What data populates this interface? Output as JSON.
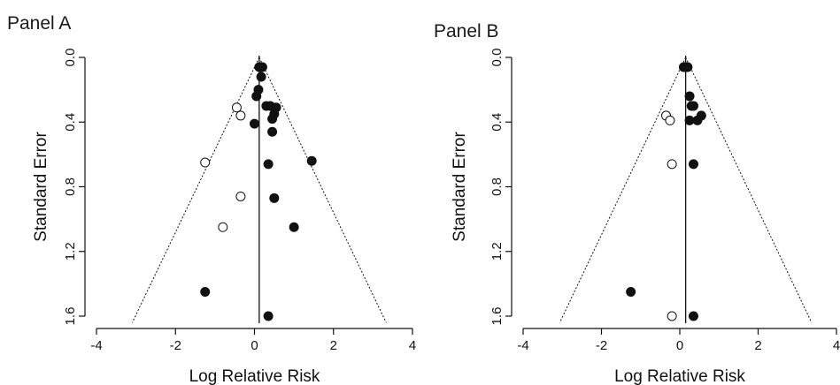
{
  "chart_data": [
    {
      "type": "scatter",
      "panel_title": "Panel A",
      "xlabel": "Log Relative Risk",
      "ylabel": "Standard Error",
      "xlim": [
        -4,
        4
      ],
      "ylim": [
        0,
        1.6
      ],
      "y_inverted": true,
      "xticks": [
        "-4",
        "-2",
        "0",
        "2",
        "4"
      ],
      "yticks": [
        "0.0",
        "0.4",
        "0.8",
        "1.2",
        "1.6"
      ],
      "center_line_x": 0.12,
      "funnel_dotted": true,
      "grid": false,
      "series": [
        {
          "marker": "filled",
          "points": [
            {
              "x": 0.15,
              "y": 0.06
            },
            {
              "x": 0.2,
              "y": 0.06
            },
            {
              "x": 0.12,
              "y": 0.06
            },
            {
              "x": 0.17,
              "y": 0.12
            },
            {
              "x": 0.1,
              "y": 0.2
            },
            {
              "x": 0.05,
              "y": 0.24
            },
            {
              "x": 0.3,
              "y": 0.3
            },
            {
              "x": 0.4,
              "y": 0.3
            },
            {
              "x": 0.55,
              "y": 0.31
            },
            {
              "x": 0.5,
              "y": 0.35
            },
            {
              "x": 0.45,
              "y": 0.38
            },
            {
              "x": 0.0,
              "y": 0.41
            },
            {
              "x": 0.45,
              "y": 0.46
            },
            {
              "x": 0.35,
              "y": 0.66
            },
            {
              "x": 1.45,
              "y": 0.64
            },
            {
              "x": 0.5,
              "y": 0.87
            },
            {
              "x": 1.0,
              "y": 1.05
            },
            {
              "x": -1.25,
              "y": 1.45
            },
            {
              "x": 0.35,
              "y": 1.6
            }
          ]
        },
        {
          "marker": "open",
          "points": [
            {
              "x": -0.45,
              "y": 0.31
            },
            {
              "x": -0.35,
              "y": 0.36
            },
            {
              "x": -1.25,
              "y": 0.65
            },
            {
              "x": -0.35,
              "y": 0.86
            },
            {
              "x": -0.8,
              "y": 1.05
            }
          ]
        }
      ]
    },
    {
      "type": "scatter",
      "panel_title": "Panel B",
      "xlabel": "Log Relative Risk",
      "ylabel": "Standard Error",
      "xlim": [
        -4,
        4
      ],
      "ylim": [
        0,
        1.6
      ],
      "y_inverted": true,
      "xticks": [
        "-4",
        "-2",
        "0",
        "2",
        "4"
      ],
      "yticks": [
        "0.0",
        "0.4",
        "0.8",
        "1.2",
        "1.6"
      ],
      "center_line_x": 0.15,
      "funnel_dotted": true,
      "grid": false,
      "series": [
        {
          "marker": "filled",
          "points": [
            {
              "x": 0.1,
              "y": 0.06
            },
            {
              "x": 0.15,
              "y": 0.06
            },
            {
              "x": 0.2,
              "y": 0.06
            },
            {
              "x": 0.25,
              "y": 0.24
            },
            {
              "x": 0.3,
              "y": 0.3
            },
            {
              "x": 0.35,
              "y": 0.3
            },
            {
              "x": 0.55,
              "y": 0.36
            },
            {
              "x": 0.45,
              "y": 0.39
            },
            {
              "x": 0.25,
              "y": 0.39
            },
            {
              "x": 0.35,
              "y": 0.66
            },
            {
              "x": -1.25,
              "y": 1.45
            },
            {
              "x": 0.35,
              "y": 1.6
            }
          ]
        },
        {
          "marker": "open",
          "points": [
            {
              "x": -0.35,
              "y": 0.36
            },
            {
              "x": -0.25,
              "y": 0.39
            },
            {
              "x": -0.2,
              "y": 0.66
            },
            {
              "x": -0.2,
              "y": 1.6
            }
          ]
        }
      ]
    }
  ]
}
